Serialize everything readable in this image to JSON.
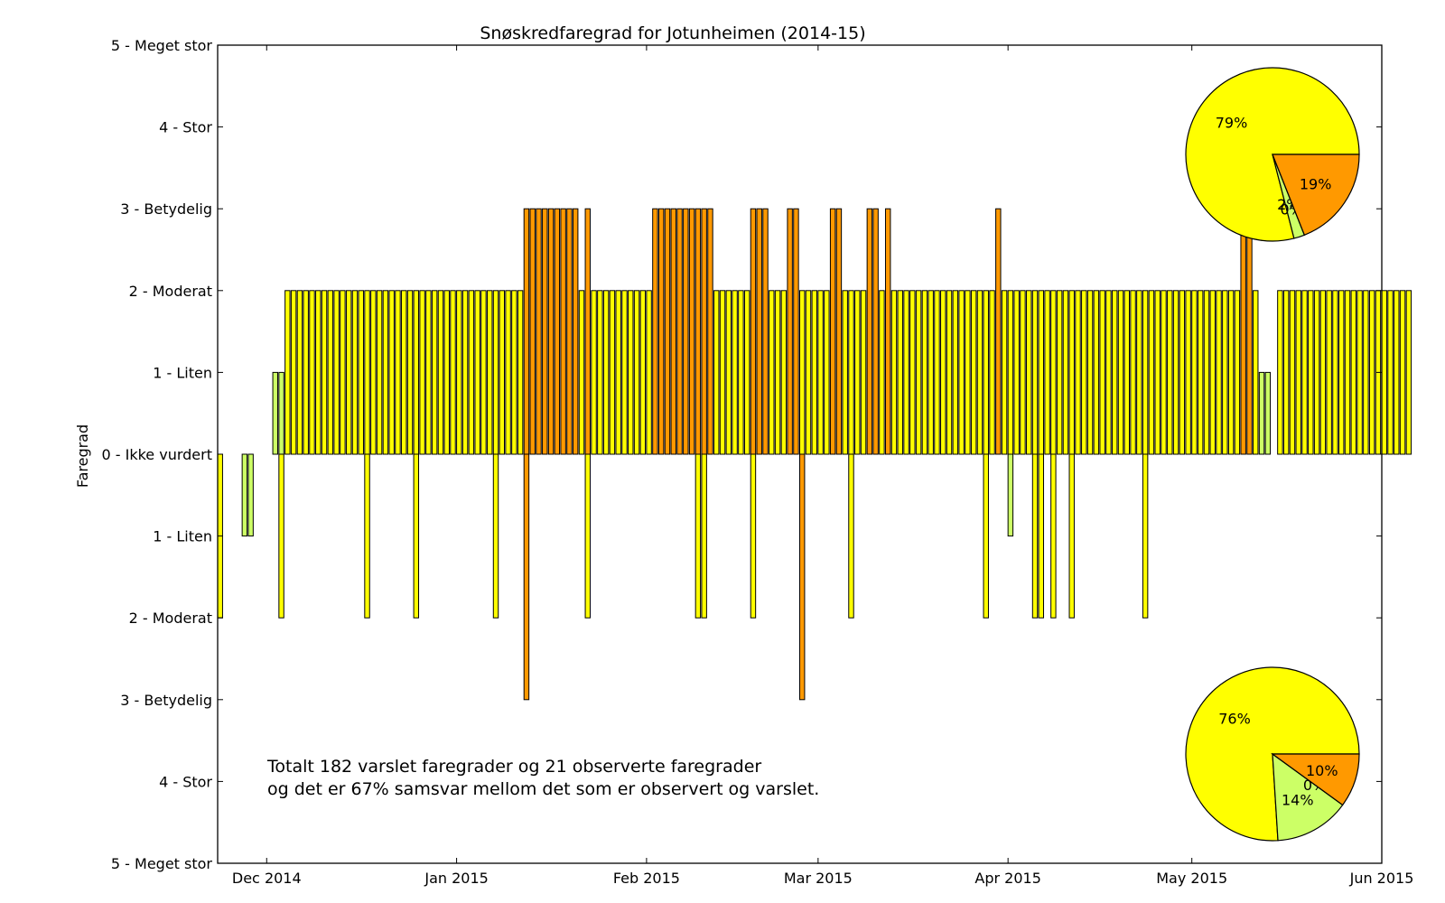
{
  "chart_data": {
    "type": "bar",
    "title": "Snøskredfaregrad for Jotunheimen (2014-15)",
    "ylabel": "Faregrad",
    "xlabel": "",
    "ylim": [
      -5,
      5
    ],
    "yticks": [
      {
        "value": 5,
        "label": "5 - Meget stor"
      },
      {
        "value": 4,
        "label": "4 - Stor"
      },
      {
        "value": 3,
        "label": "3 - Betydelig"
      },
      {
        "value": 2,
        "label": "2 - Moderat"
      },
      {
        "value": 1,
        "label": "1 - Liten"
      },
      {
        "value": 0,
        "label": "0 - Ikke vurdert"
      },
      {
        "value": -1,
        "label": "1 - Liten"
      },
      {
        "value": -2,
        "label": "2 - Moderat"
      },
      {
        "value": -3,
        "label": "3 - Betydelig"
      },
      {
        "value": -4,
        "label": "4 - Stor"
      },
      {
        "value": -5,
        "label": "5 - Meget stor"
      }
    ],
    "xrange": [
      "2014-11-23",
      "2015-06-01"
    ],
    "xticks": [
      {
        "date": "2014-12-01",
        "label": "Dec 2014"
      },
      {
        "date": "2015-01-01",
        "label": "Jan 2015"
      },
      {
        "date": "2015-02-01",
        "label": "Feb 2015"
      },
      {
        "date": "2015-03-01",
        "label": "Mar 2015"
      },
      {
        "date": "2015-04-01",
        "label": "Apr 2015"
      },
      {
        "date": "2015-05-01",
        "label": "May 2015"
      },
      {
        "date": "2015-06-01",
        "label": "Jun 2015"
      }
    ],
    "colors": {
      "1": "#ccff66",
      "2": "#ffff00",
      "3": "#ff9900"
    },
    "forecast": {
      "start": "2014-12-02",
      "levels": [
        1,
        1,
        2,
        2,
        2,
        2,
        2,
        2,
        2,
        2,
        2,
        2,
        2,
        2,
        2,
        2,
        2,
        2,
        2,
        2,
        2,
        2,
        2,
        2,
        2,
        2,
        2,
        2,
        2,
        2,
        2,
        2,
        2,
        2,
        2,
        2,
        2,
        2,
        2,
        2,
        2,
        3,
        3,
        3,
        3,
        3,
        3,
        3,
        3,
        3,
        2,
        3,
        2,
        2,
        2,
        2,
        2,
        2,
        2,
        2,
        2,
        2,
        3,
        3,
        3,
        3,
        3,
        3,
        3,
        3,
        3,
        3,
        2,
        2,
        2,
        2,
        2,
        2,
        3,
        3,
        3,
        2,
        2,
        2,
        3,
        3,
        2,
        2,
        2,
        2,
        2,
        3,
        3,
        2,
        2,
        2,
        2,
        3,
        3,
        2,
        3,
        2,
        2,
        2,
        2,
        2,
        2,
        2,
        2,
        2,
        2,
        2,
        2,
        2,
        2,
        2,
        2,
        2,
        3,
        2,
        2,
        2,
        2,
        2,
        2,
        2,
        2,
        2,
        2,
        2,
        2,
        2,
        2,
        2,
        2,
        2,
        2,
        2,
        2,
        2,
        2,
        2,
        2,
        2,
        2,
        2,
        2,
        2,
        2,
        2,
        2,
        2,
        2,
        2,
        2,
        2,
        2,
        2,
        3,
        3,
        2,
        1,
        1,
        0,
        2,
        2,
        2,
        2,
        2,
        2,
        2,
        2,
        2,
        2,
        2,
        2,
        2,
        2,
        2,
        2,
        2,
        2,
        2,
        2,
        2,
        2
      ]
    },
    "observed": [
      {
        "date": "2014-11-23",
        "level": 2
      },
      {
        "date": "2014-11-27",
        "level": 1
      },
      {
        "date": "2014-11-28",
        "level": 1
      },
      {
        "date": "2014-12-03",
        "level": 2
      },
      {
        "date": "2014-12-17",
        "level": 2
      },
      {
        "date": "2014-12-25",
        "level": 2
      },
      {
        "date": "2015-01-07",
        "level": 2
      },
      {
        "date": "2015-01-12",
        "level": 3
      },
      {
        "date": "2015-01-22",
        "level": 2
      },
      {
        "date": "2015-02-09",
        "level": 2
      },
      {
        "date": "2015-02-10",
        "level": 2
      },
      {
        "date": "2015-02-18",
        "level": 2
      },
      {
        "date": "2015-02-26",
        "level": 3
      },
      {
        "date": "2015-03-06",
        "level": 2
      },
      {
        "date": "2015-03-28",
        "level": 2
      },
      {
        "date": "2015-04-01",
        "level": 1
      },
      {
        "date": "2015-04-05",
        "level": 2
      },
      {
        "date": "2015-04-06",
        "level": 2
      },
      {
        "date": "2015-04-08",
        "level": 2
      },
      {
        "date": "2015-04-11",
        "level": 2
      },
      {
        "date": "2015-04-23",
        "level": 2
      }
    ],
    "annotation": [
      "Totalt 182 varslet faregrader og 21 observerte faregrader",
      "og det er 67% samsvar mellom det som er observert og varslet."
    ],
    "pies": [
      {
        "position": "top-right",
        "slices": [
          {
            "level": 2,
            "percent": 79,
            "label": "79%"
          },
          {
            "level": 1,
            "percent": 2,
            "label": "2%"
          },
          {
            "level": 0,
            "percent": 0,
            "label": "0%"
          },
          {
            "level": 3,
            "percent": 19,
            "label": "19%"
          }
        ]
      },
      {
        "position": "bottom-right",
        "slices": [
          {
            "level": 2,
            "percent": 76,
            "label": "76%"
          },
          {
            "level": 1,
            "percent": 14,
            "label": "14%"
          },
          {
            "level": 0,
            "percent": 0,
            "label": "0%"
          },
          {
            "level": 3,
            "percent": 10,
            "label": "10%"
          }
        ]
      }
    ]
  }
}
